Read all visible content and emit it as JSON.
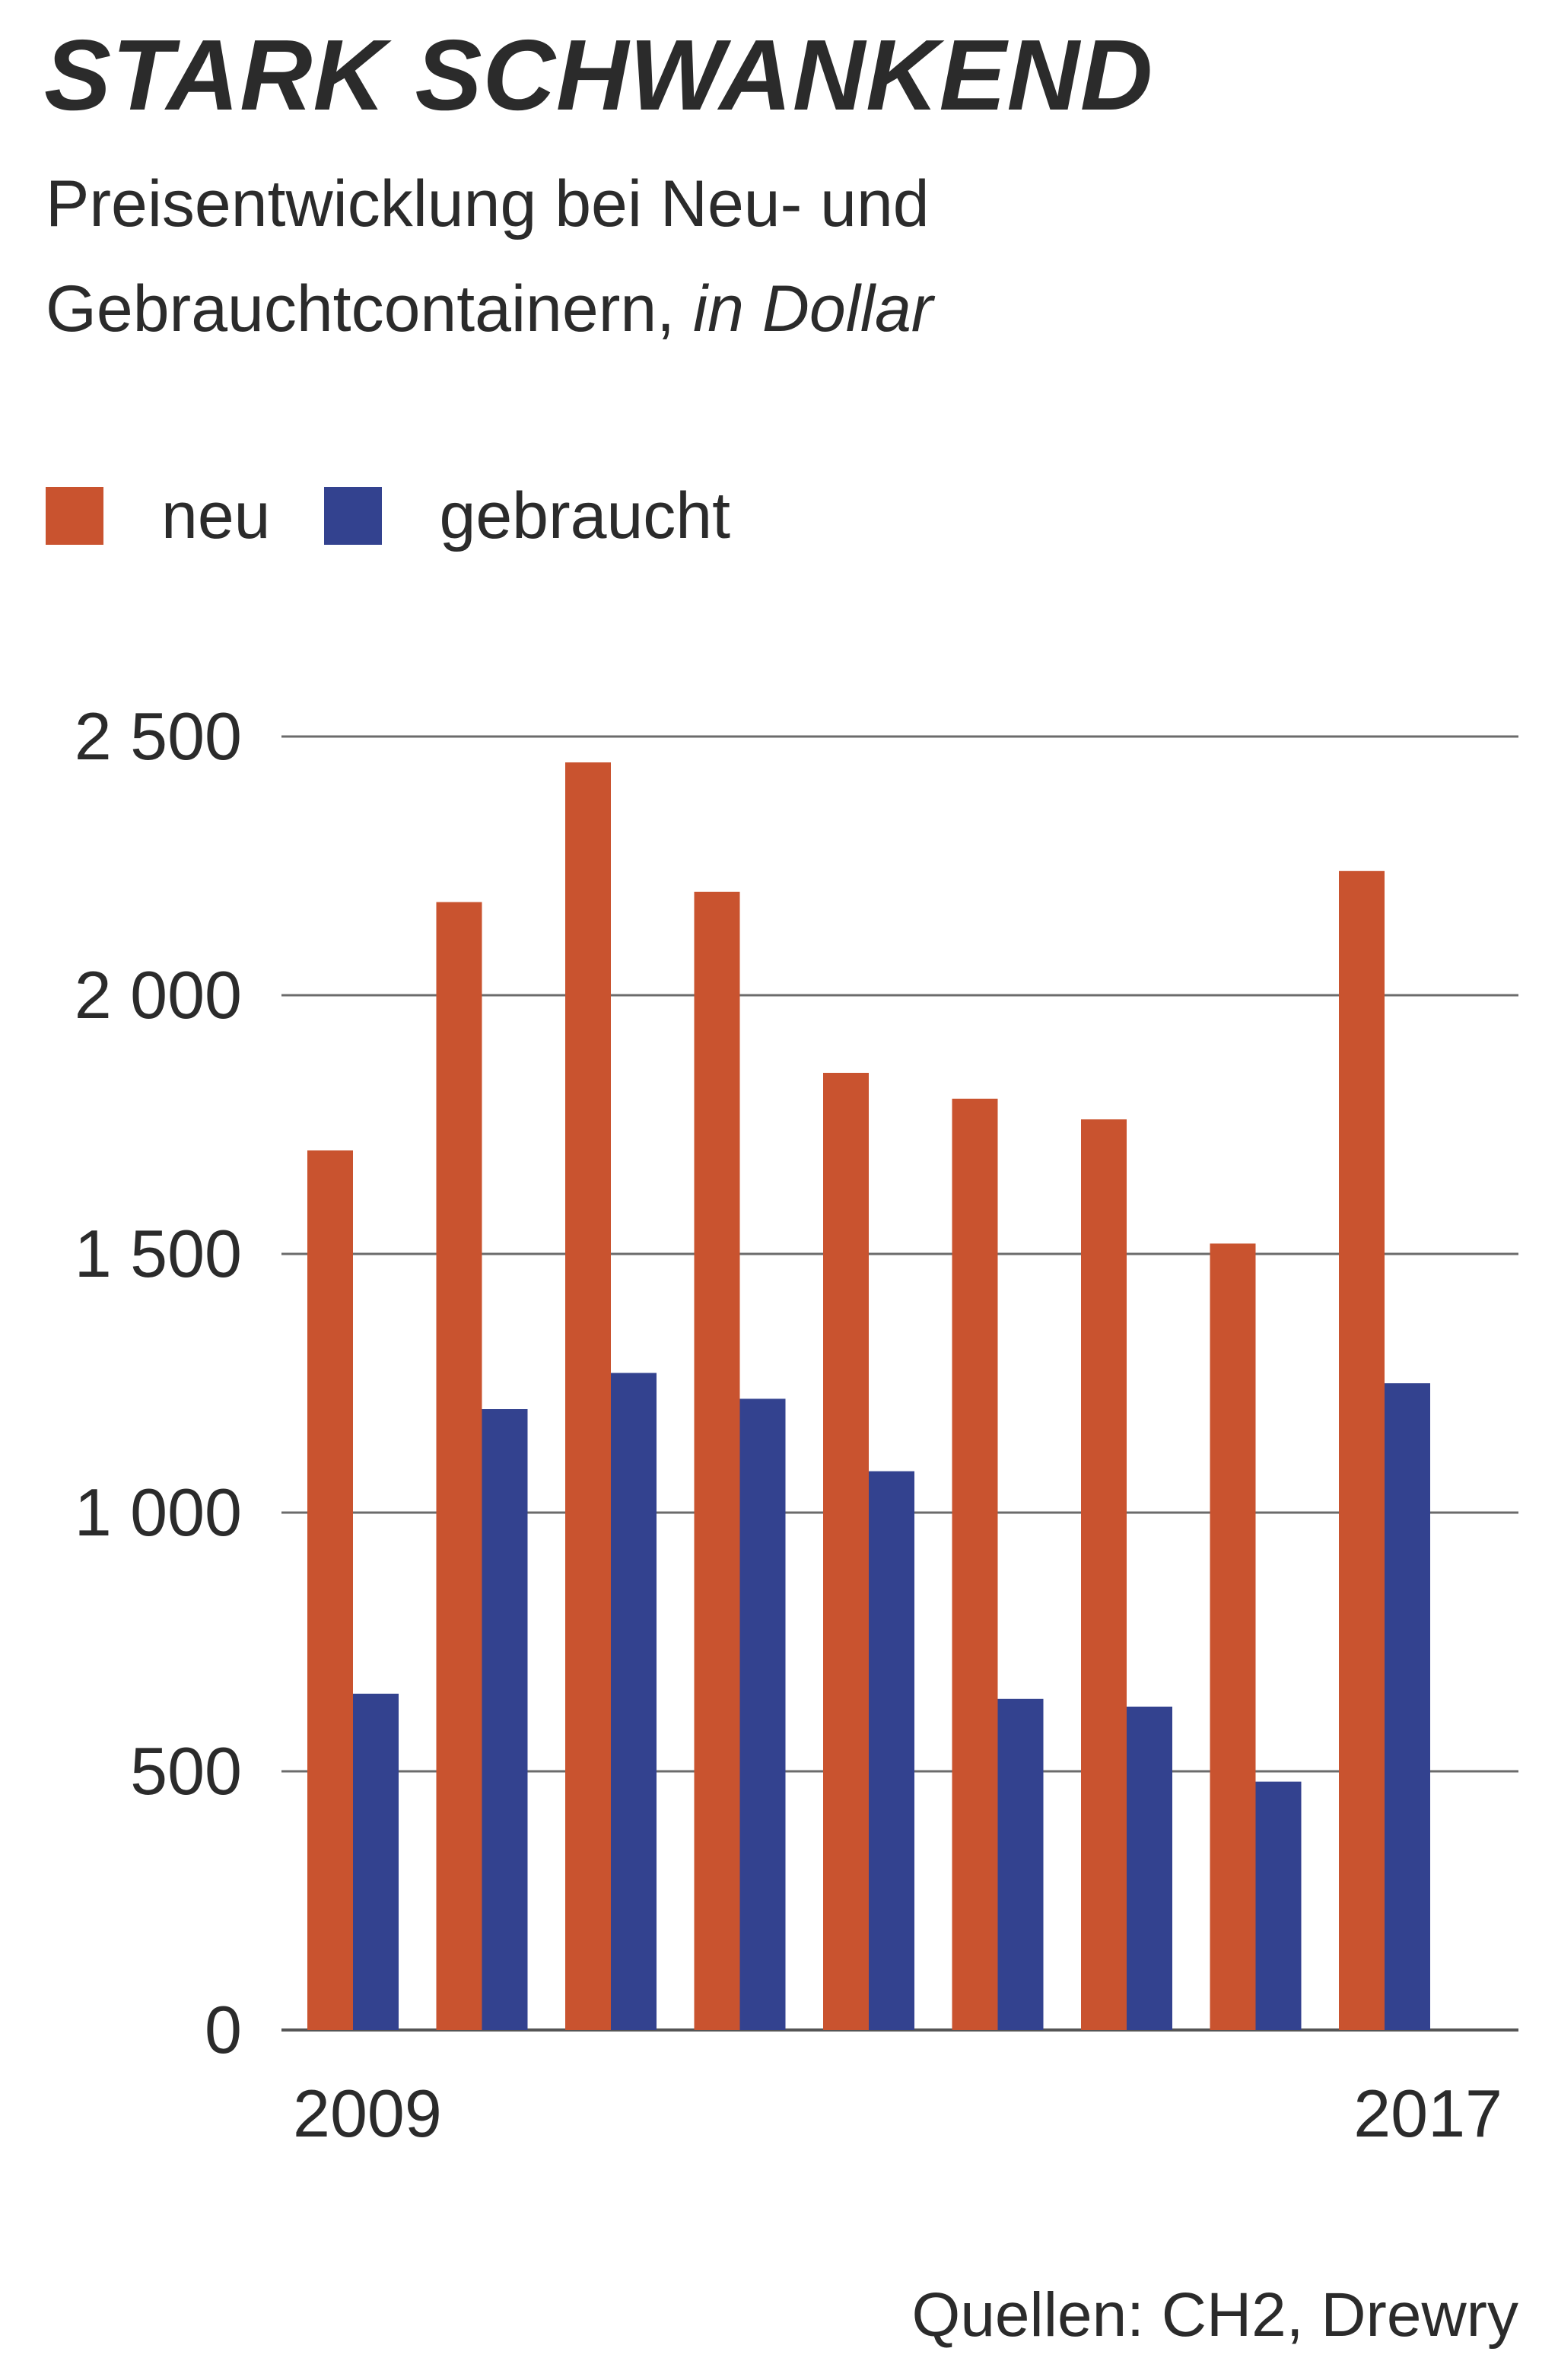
{
  "header": {
    "title": "STARK SCHWANKEND",
    "subtitle_line1": "Preisentwicklung bei Neu- und",
    "subtitle_line2": "Gebrauchtcontainern,",
    "subtitle_unit": "in Dollar"
  },
  "source": "Quellen: CH2, Drewry",
  "chart_data": {
    "type": "bar",
    "title": "STARK SCHWANKEND",
    "subtitle": "Preisentwicklung bei Neu- und Gebrauchtcontainern, in Dollar",
    "categories": [
      "2009",
      "",
      "",
      "",
      "",
      "",
      "",
      "",
      "2017"
    ],
    "x_tick_labels": [
      "2009",
      "2017"
    ],
    "series": [
      {
        "name": "neu",
        "color": "#c9532f",
        "values": [
          1700,
          2180,
          2450,
          2200,
          1850,
          1800,
          1760,
          1520,
          2240
        ]
      },
      {
        "name": "gebraucht",
        "color": "#33428f",
        "values": [
          650,
          1200,
          1270,
          1220,
          1080,
          640,
          625,
          480,
          1250
        ]
      }
    ],
    "y_ticks": [
      "0",
      "500",
      "1 000",
      "1 500",
      "2 000",
      "2 500"
    ],
    "y_tick_values": [
      0,
      500,
      1000,
      1500,
      2000,
      2500
    ],
    "ylim": [
      0,
      2500
    ],
    "grid": true,
    "legend": "top-left"
  }
}
